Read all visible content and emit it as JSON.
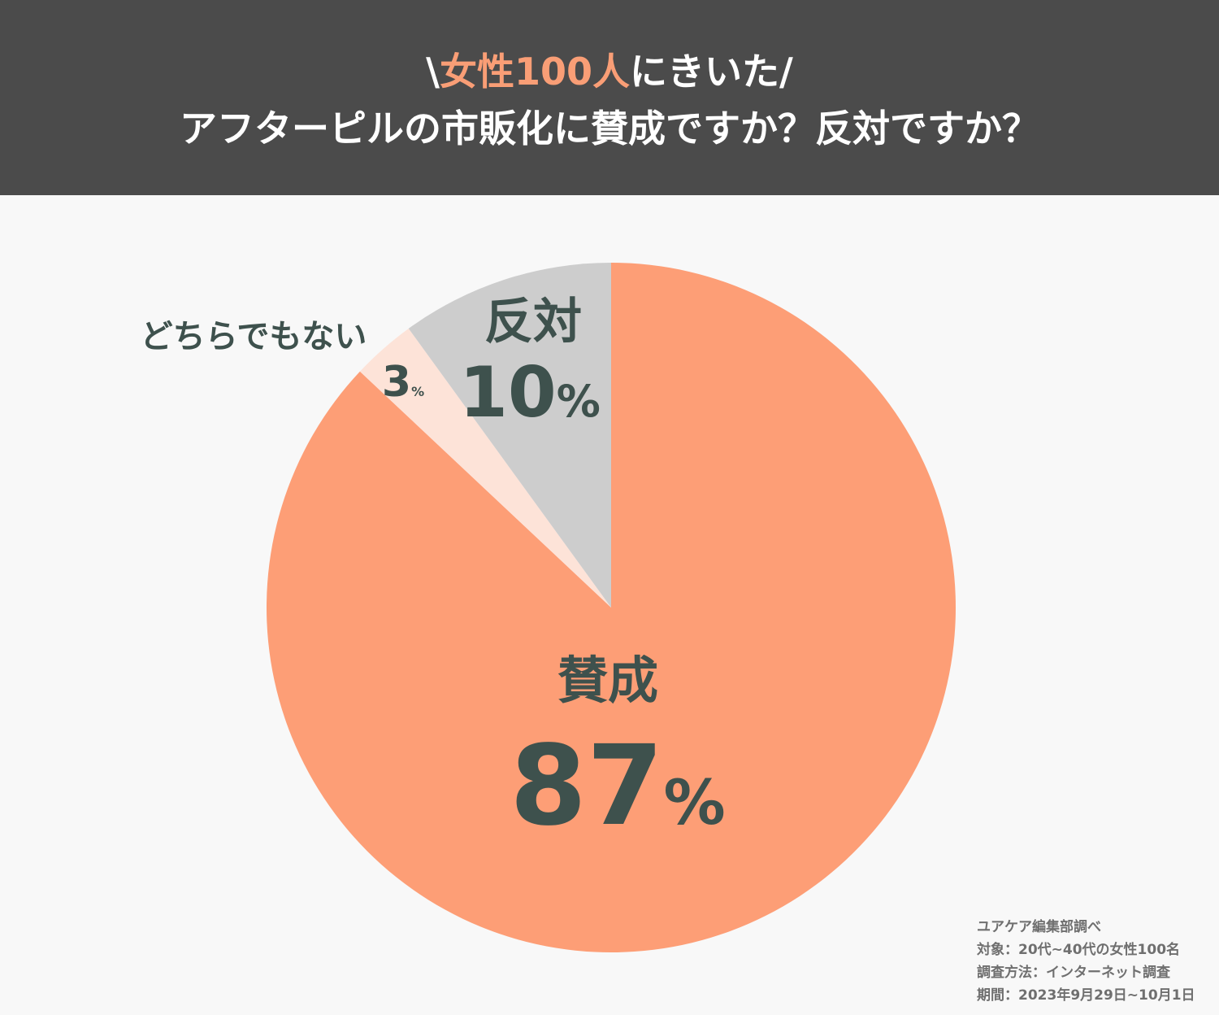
{
  "header": {
    "line1_prefix": "\\",
    "line1_accent": "女性100人",
    "line1_suffix": "にきいた/",
    "line2": "アフターピルの市販化に賛成ですか？反対ですか？",
    "accent_color": "#f99e76",
    "background_color": "#4b4b4b"
  },
  "chart_data": {
    "type": "pie",
    "title": "アフターピルの市販化に賛成ですか？反対ですか？",
    "slices": [
      {
        "label": "賛成",
        "value": 87,
        "unit": "%",
        "color": "#fd9e76"
      },
      {
        "label": "どちらでもない",
        "value": 3,
        "unit": "%",
        "color": "#fde3d8"
      },
      {
        "label": "反対",
        "value": 10,
        "unit": "%",
        "color": "#cdcdcd"
      }
    ],
    "start": "12 o'clock",
    "direction": "clockwise",
    "legend": "none",
    "label_color": "#3e514d"
  },
  "notes": {
    "source": "ユアケア編集部調べ",
    "target": "対象：20代~40代の女性100名",
    "method": "調査方法：インターネット調査",
    "period": "期間：2023年9月29日~10月1日"
  }
}
